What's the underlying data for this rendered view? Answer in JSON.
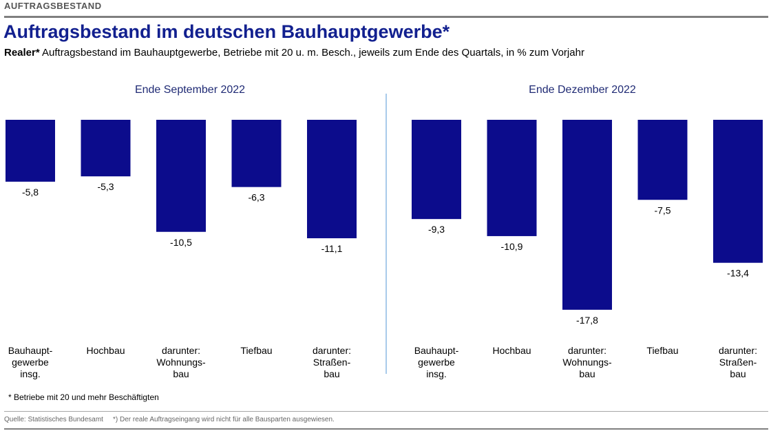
{
  "header": {
    "section_label": "AUFTRAGSBESTAND",
    "title": "Auftragsbestand im deutschen Bauhauptgewerbe*",
    "subtitle_bold": "Realer*",
    "subtitle_rest": " Auftragsbestand im Bauhauptgewerbe, Betriebe mit 20 u. m. Besch., jeweils zum Ende des Quartals, in % zum Vorjahr"
  },
  "colors": {
    "bar": "#0c0c8c",
    "divider": "#6fa8dc",
    "title": "#12208f"
  },
  "chart_data": [
    {
      "type": "bar",
      "title": "Ende September 2022",
      "categories": [
        [
          "Bauhaupt-",
          "gewerbe",
          "insg."
        ],
        [
          "Hochbau"
        ],
        [
          "darunter:",
          "Wohnungs-",
          "bau"
        ],
        [
          "Tiefbau"
        ],
        [
          "darunter:",
          "Straßen-",
          "bau"
        ]
      ],
      "values": [
        -5.8,
        -5.3,
        -10.5,
        -6.3,
        -11.1
      ],
      "value_labels": [
        "-5,8",
        "-5,3",
        "-10,5",
        "-6,3",
        "-11,1"
      ]
    },
    {
      "type": "bar",
      "title": "Ende Dezember 2022",
      "categories": [
        [
          "Bauhaupt-",
          "gewerbe",
          "insg."
        ],
        [
          "Hochbau"
        ],
        [
          "darunter:",
          "Wohnungs-",
          "bau"
        ],
        [
          "Tiefbau"
        ],
        [
          "darunter:",
          "Straßen-",
          "bau"
        ]
      ],
      "values": [
        -9.3,
        -10.9,
        -17.8,
        -7.5,
        -13.4
      ],
      "value_labels": [
        "-9,3",
        "-10,9",
        "-17,8",
        "-7,5",
        "-13,4"
      ]
    }
  ],
  "footer": {
    "footnote": "* Betriebe mit 20 und mehr Beschäftigten",
    "source": "Quelle: Statistisches Bundesamt",
    "note": "*) Der reale Auftragseingang wird nicht für alle Bausparten ausgewiesen."
  }
}
